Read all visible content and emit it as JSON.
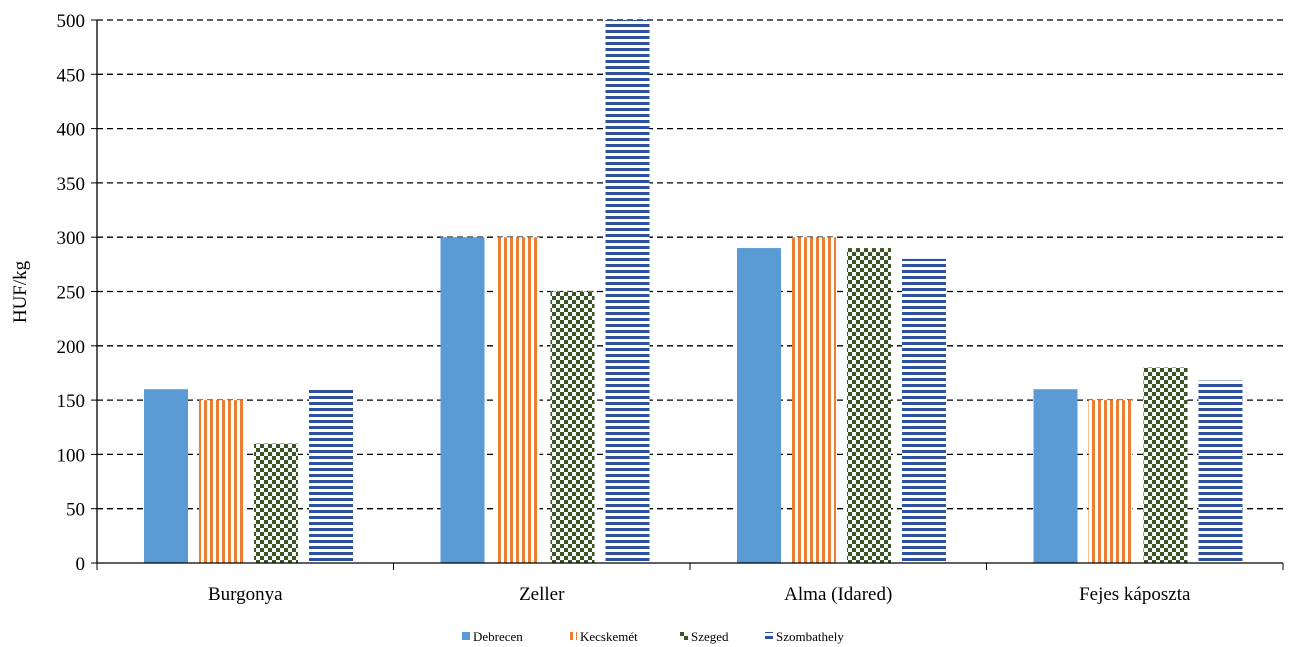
{
  "chart_data": {
    "type": "bar",
    "title": "",
    "xlabel": "",
    "ylabel": "HUF/kg",
    "ylim": [
      0,
      500
    ],
    "yticks": [
      0,
      50,
      100,
      150,
      200,
      250,
      300,
      350,
      400,
      450,
      500
    ],
    "grid": true,
    "legend_position": "bottom",
    "categories": [
      "Burgonya",
      "Zeller",
      "Alma (Idared)",
      "Fejes káposzta"
    ],
    "series": [
      {
        "name": "Debrecen",
        "values": [
          160,
          300,
          290,
          160
        ],
        "color": "#5b9bd5",
        "pattern": "solid"
      },
      {
        "name": "Kecskemét",
        "values": [
          150,
          300,
          300,
          150
        ],
        "color": "#ed7d31",
        "pattern": "vertical-stripes"
      },
      {
        "name": "Szeged",
        "values": [
          110,
          250,
          290,
          180
        ],
        "color": "#375623",
        "pattern": "checker"
      },
      {
        "name": "Szombathely",
        "values": [
          160,
          500,
          280,
          168
        ],
        "color": "#2f4f9f",
        "pattern": "horizontal-stripes"
      }
    ]
  }
}
